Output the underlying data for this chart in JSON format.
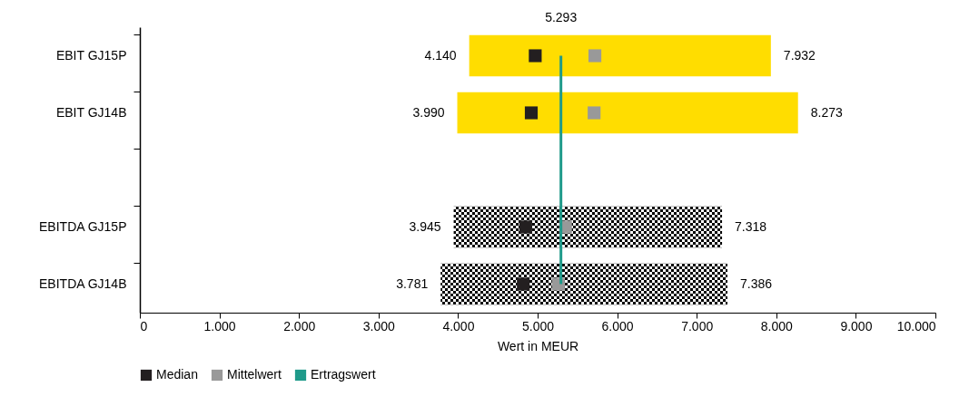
{
  "chart_data": {
    "type": "bar",
    "orientation": "horizontal",
    "categories": [
      "EBIT GJ15P",
      "EBIT GJ14B",
      null,
      "EBITDA GJ15P",
      "EBITDA GJ14B"
    ],
    "base": [
      4140,
      3990,
      null,
      3945,
      3781
    ],
    "values": [
      3792,
      4283,
      null,
      3373,
      3605
    ],
    "colors": [
      "#ffdd00",
      "#ffdd00",
      null,
      "#000000",
      "#000000"
    ],
    "series": [
      {
        "name": "Median",
        "type": "scatter",
        "marker": "square",
        "color": "#231f20",
        "values": [
          4970,
          4920,
          null,
          4850,
          4820
        ]
      },
      {
        "name": "Mittelwert",
        "type": "scatter",
        "marker": "square",
        "color": "#999999",
        "values": [
          5720,
          5710,
          null,
          5350,
          5260
        ]
      },
      {
        "name": "Ertragswert",
        "type": "line",
        "color": "#1f9a8a",
        "values": [
          5293,
          5293,
          5293,
          5293,
          5293
        ]
      }
    ],
    "xlabel": "Wert in MEUR",
    "xlim": [
      0,
      10000
    ],
    "xticks": [
      0,
      {
        "value": 1000,
        "label": "1.000"
      },
      {
        "value": 2000,
        "label": "2.000"
      },
      {
        "value": 3000,
        "label": "3.000"
      },
      {
        "value": 4000,
        "label": "4.000"
      },
      {
        "value": 5000,
        "label": "5.000"
      },
      {
        "value": 6000,
        "label": "6.000"
      },
      {
        "value": 7000,
        "label": "7.000"
      },
      {
        "value": 8000,
        "label": "8.000"
      },
      {
        "value": 9000,
        "label": "9.000"
      },
      {
        "value": 10000,
        "label": "10.000"
      }
    ],
    "annotations": [
      "5.293",
      {
        "text": "4.140",
        "x": 4140,
        "y": "EBIT GJ15P"
      },
      {
        "text": "7.932",
        "x": 7932,
        "y": "EBIT GJ15P"
      },
      {
        "text": "3.990",
        "x": 3990,
        "y": "EBIT GJ14B"
      },
      {
        "text": "8.273",
        "x": 8273,
        "y": "EBIT GJ14B"
      },
      {
        "text": "3.945",
        "x": 3945,
        "y": "EBITDA GJ15P"
      },
      {
        "text": "7.318",
        "x": 7318,
        "y": "EBITDA GJ15P"
      },
      {
        "text": "3.781",
        "x": 3781,
        "y": "EBITDA GJ14B"
      },
      {
        "text": "7.386",
        "x": 7386,
        "y": "EBITDA GJ14B"
      }
    ],
    "grid": false,
    "legend": "bottom"
  }
}
